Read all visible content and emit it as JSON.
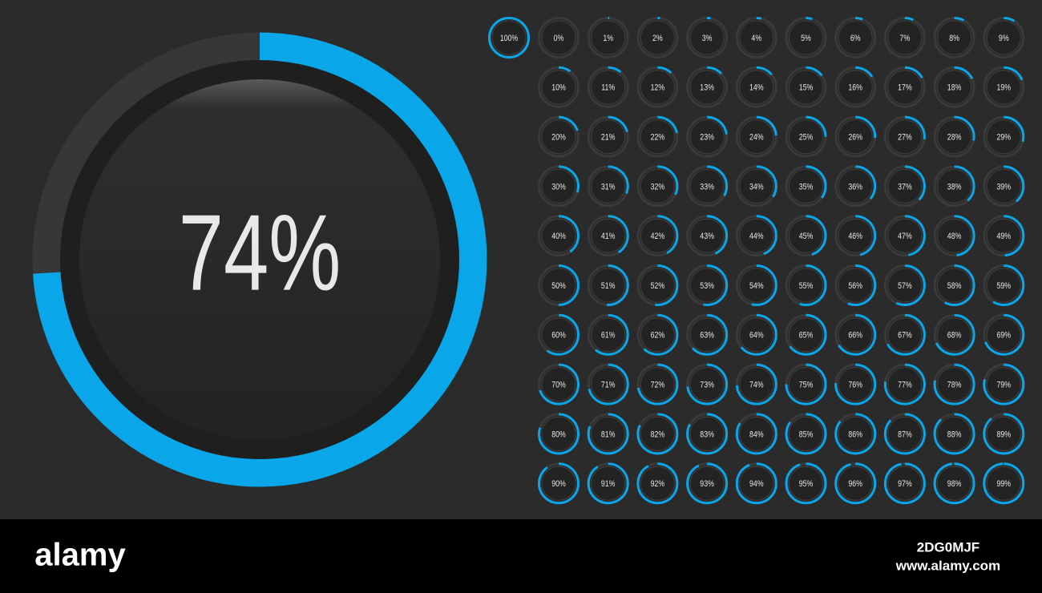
{
  "main_meter": {
    "value": 74,
    "label": "74%"
  },
  "meters": [
    {
      "value": 0,
      "label": "0%"
    },
    {
      "value": 1,
      "label": "1%"
    },
    {
      "value": 2,
      "label": "2%"
    },
    {
      "value": 3,
      "label": "3%"
    },
    {
      "value": 4,
      "label": "4%"
    },
    {
      "value": 5,
      "label": "5%"
    },
    {
      "value": 6,
      "label": "6%"
    },
    {
      "value": 7,
      "label": "7%"
    },
    {
      "value": 8,
      "label": "8%"
    },
    {
      "value": 9,
      "label": "9%"
    },
    {
      "value": 10,
      "label": "10%"
    },
    {
      "value": 11,
      "label": "11%"
    },
    {
      "value": 12,
      "label": "12%"
    },
    {
      "value": 13,
      "label": "13%"
    },
    {
      "value": 14,
      "label": "14%"
    },
    {
      "value": 15,
      "label": "15%"
    },
    {
      "value": 16,
      "label": "16%"
    },
    {
      "value": 17,
      "label": "17%"
    },
    {
      "value": 18,
      "label": "18%"
    },
    {
      "value": 19,
      "label": "19%"
    },
    {
      "value": 20,
      "label": "20%"
    },
    {
      "value": 21,
      "label": "21%"
    },
    {
      "value": 22,
      "label": "22%"
    },
    {
      "value": 23,
      "label": "23%"
    },
    {
      "value": 24,
      "label": "24%"
    },
    {
      "value": 25,
      "label": "25%"
    },
    {
      "value": 26,
      "label": "26%"
    },
    {
      "value": 27,
      "label": "27%"
    },
    {
      "value": 28,
      "label": "28%"
    },
    {
      "value": 29,
      "label": "29%"
    },
    {
      "value": 30,
      "label": "30%"
    },
    {
      "value": 31,
      "label": "31%"
    },
    {
      "value": 32,
      "label": "32%"
    },
    {
      "value": 33,
      "label": "33%"
    },
    {
      "value": 34,
      "label": "34%"
    },
    {
      "value": 35,
      "label": "35%"
    },
    {
      "value": 36,
      "label": "36%"
    },
    {
      "value": 37,
      "label": "37%"
    },
    {
      "value": 38,
      "label": "38%"
    },
    {
      "value": 39,
      "label": "39%"
    },
    {
      "value": 40,
      "label": "40%"
    },
    {
      "value": 41,
      "label": "41%"
    },
    {
      "value": 42,
      "label": "42%"
    },
    {
      "value": 43,
      "label": "43%"
    },
    {
      "value": 44,
      "label": "44%"
    },
    {
      "value": 45,
      "label": "45%"
    },
    {
      "value": 46,
      "label": "46%"
    },
    {
      "value": 47,
      "label": "47%"
    },
    {
      "value": 48,
      "label": "48%"
    },
    {
      "value": 49,
      "label": "49%"
    },
    {
      "value": 50,
      "label": "50%"
    },
    {
      "value": 51,
      "label": "51%"
    },
    {
      "value": 52,
      "label": "52%"
    },
    {
      "value": 53,
      "label": "53%"
    },
    {
      "value": 54,
      "label": "54%"
    },
    {
      "value": 55,
      "label": "55%"
    },
    {
      "value": 56,
      "label": "56%"
    },
    {
      "value": 57,
      "label": "57%"
    },
    {
      "value": 58,
      "label": "58%"
    },
    {
      "value": 59,
      "label": "59%"
    },
    {
      "value": 60,
      "label": "60%"
    },
    {
      "value": 61,
      "label": "61%"
    },
    {
      "value": 62,
      "label": "62%"
    },
    {
      "value": 63,
      "label": "63%"
    },
    {
      "value": 64,
      "label": "64%"
    },
    {
      "value": 65,
      "label": "65%"
    },
    {
      "value": 66,
      "label": "66%"
    },
    {
      "value": 67,
      "label": "67%"
    },
    {
      "value": 68,
      "label": "68%"
    },
    {
      "value": 69,
      "label": "69%"
    },
    {
      "value": 70,
      "label": "70%"
    },
    {
      "value": 71,
      "label": "71%"
    },
    {
      "value": 72,
      "label": "72%"
    },
    {
      "value": 73,
      "label": "73%"
    },
    {
      "value": 74,
      "label": "74%"
    },
    {
      "value": 75,
      "label": "75%"
    },
    {
      "value": 76,
      "label": "76%"
    },
    {
      "value": 77,
      "label": "77%"
    },
    {
      "value": 78,
      "label": "78%"
    },
    {
      "value": 79,
      "label": "79%"
    },
    {
      "value": 80,
      "label": "80%"
    },
    {
      "value": 81,
      "label": "81%"
    },
    {
      "value": 82,
      "label": "82%"
    },
    {
      "value": 83,
      "label": "83%"
    },
    {
      "value": 84,
      "label": "84%"
    },
    {
      "value": 85,
      "label": "85%"
    },
    {
      "value": 86,
      "label": "86%"
    },
    {
      "value": 87,
      "label": "87%"
    },
    {
      "value": 88,
      "label": "88%"
    },
    {
      "value": 89,
      "label": "89%"
    },
    {
      "value": 90,
      "label": "90%"
    },
    {
      "value": 91,
      "label": "91%"
    },
    {
      "value": 92,
      "label": "92%"
    },
    {
      "value": 93,
      "label": "93%"
    },
    {
      "value": 94,
      "label": "94%"
    },
    {
      "value": 95,
      "label": "95%"
    },
    {
      "value": 96,
      "label": "96%"
    },
    {
      "value": 97,
      "label": "97%"
    },
    {
      "value": 98,
      "label": "98%"
    },
    {
      "value": 99,
      "label": "99%"
    },
    {
      "value": 100,
      "label": "100%"
    }
  ],
  "footer": {
    "logo": "alamy",
    "image_id": "2DG0MJF",
    "url": "www.alamy.com"
  }
}
